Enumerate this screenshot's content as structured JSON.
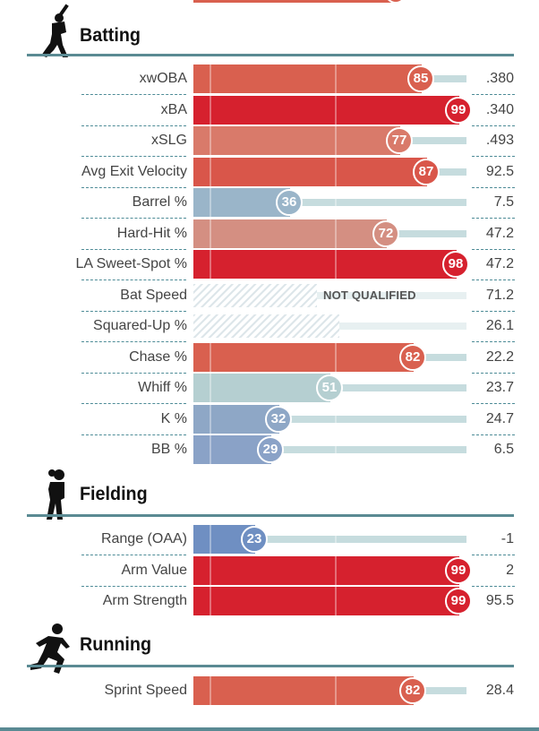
{
  "chart_data": {
    "type": "bar",
    "xlim": [
      0,
      100
    ],
    "sections": [
      {
        "title": "Batting",
        "icon": "batter-icon",
        "rows": [
          {
            "label": "xwOBA",
            "percentile": 85,
            "value": ".380",
            "color": "#d9604f"
          },
          {
            "label": "xBA",
            "percentile": 99,
            "value": ".340",
            "color": "#d6212e"
          },
          {
            "label": "xSLG",
            "percentile": 77,
            "value": ".493",
            "color": "#d97a6a"
          },
          {
            "label": "Avg Exit Velocity",
            "percentile": 87,
            "value": "92.5",
            "color": "#d9564a"
          },
          {
            "label": "Barrel %",
            "percentile": 36,
            "value": "7.5",
            "color": "#9ab5c9"
          },
          {
            "label": "Hard-Hit %",
            "percentile": 72,
            "value": "47.2",
            "color": "#d48f82"
          },
          {
            "label": "LA Sweet-Spot %",
            "percentile": 98,
            "value": "47.2",
            "color": "#d6212e"
          },
          {
            "label": "Bat Speed",
            "percentile": null,
            "value": "71.2",
            "note": "NOT QUALIFIED",
            "color": "#dde6ea"
          },
          {
            "label": "Squared-Up %",
            "percentile": null,
            "value": "26.1",
            "note": "",
            "color": "#dde6ea"
          },
          {
            "label": "Chase %",
            "percentile": 82,
            "value": "22.2",
            "color": "#d9604f"
          },
          {
            "label": "Whiff %",
            "percentile": 51,
            "value": "23.7",
            "color": "#b5cfd1"
          },
          {
            "label": "K %",
            "percentile": 32,
            "value": "24.7",
            "color": "#8ea7c6"
          },
          {
            "label": "BB %",
            "percentile": 29,
            "value": "6.5",
            "color": "#8aa2c7"
          }
        ]
      },
      {
        "title": "Fielding",
        "icon": "fielder-icon",
        "rows": [
          {
            "label": "Range (OAA)",
            "percentile": 23,
            "value": "-1",
            "color": "#6f8fc2"
          },
          {
            "label": "Arm Value",
            "percentile": 99,
            "value": "2",
            "color": "#d6212e"
          },
          {
            "label": "Arm Strength",
            "percentile": 99,
            "value": "95.5",
            "color": "#d6212e"
          }
        ]
      },
      {
        "title": "Running",
        "icon": "runner-icon",
        "rows": [
          {
            "label": "Sprint Speed",
            "percentile": 82,
            "value": "28.4",
            "color": "#d9604f"
          }
        ]
      }
    ]
  }
}
